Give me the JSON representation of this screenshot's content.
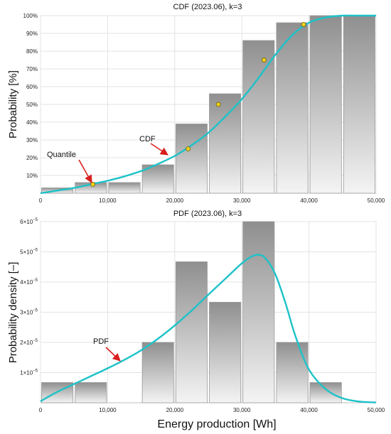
{
  "colors": {
    "bar_dark": "#8f8f8f",
    "bar_light": "#f4f4f4",
    "curve": "#1cc2c8",
    "marker": "#f2d21b",
    "arrow": "#d91e1e"
  },
  "chart_data": [
    {
      "type": "bar",
      "title": "CDF (2023.06), k=3",
      "ylabel": "Probability [%]",
      "xlabel": "",
      "xlim": [
        0,
        50000
      ],
      "ylim": [
        0,
        100
      ],
      "grid": true,
      "x_ticks": [
        "0",
        "10,000",
        "20,000",
        "30,000",
        "40,000",
        "50,000"
      ],
      "y_ticks": [
        "10%",
        "20%",
        "30%",
        "40%",
        "50%",
        "60%",
        "70%",
        "80%",
        "90%",
        "100%"
      ],
      "bars": [
        {
          "x0": 0,
          "x1": 5000,
          "value": 3
        },
        {
          "x0": 5000,
          "x1": 10000,
          "value": 6
        },
        {
          "x0": 10000,
          "x1": 15000,
          "value": 6
        },
        {
          "x0": 15000,
          "x1": 20000,
          "value": 16
        },
        {
          "x0": 20000,
          "x1": 25000,
          "value": 39
        },
        {
          "x0": 25000,
          "x1": 30000,
          "value": 56
        },
        {
          "x0": 30000,
          "x1": 35000,
          "value": 86
        },
        {
          "x0": 35000,
          "x1": 40000,
          "value": 96
        },
        {
          "x0": 40000,
          "x1": 45000,
          "value": 100
        },
        {
          "x0": 45000,
          "x1": 50000,
          "value": 100
        }
      ],
      "curve": {
        "x": [
          0,
          2500,
          5000,
          7500,
          10000,
          12500,
          15000,
          17500,
          20000,
          22500,
          25000,
          27500,
          30000,
          32500,
          35000,
          37500,
          40000,
          42500,
          45000,
          47500,
          50000
        ],
        "y": [
          0,
          1.5,
          3,
          5,
          7,
          9.5,
          12.5,
          16.5,
          21,
          27,
          34,
          43,
          53,
          65,
          78,
          89,
          96,
          99,
          100,
          100,
          100
        ]
      },
      "quantiles": {
        "x": [
          7800,
          22000,
          26500,
          33300,
          39200
        ],
        "y": [
          5,
          25,
          50,
          75,
          95
        ]
      },
      "annotations": [
        "Quantile",
        "CDF"
      ]
    },
    {
      "type": "bar",
      "title": "PDF (2023.06), k=3",
      "ylabel": "Probability density [–]",
      "xlabel": "Energy production [Wh]",
      "xlim": [
        0,
        50000
      ],
      "ylim": [
        0,
        6e-05
      ],
      "grid": true,
      "x_ticks": [
        "0",
        "10,000",
        "20,000",
        "30,000",
        "40,000",
        "50,000"
      ],
      "y_ticks": [
        {
          "base": "1×10",
          "exp": "−5",
          "value": 1e-05
        },
        {
          "base": "2×10",
          "exp": "−5",
          "value": 2e-05
        },
        {
          "base": "3×10",
          "exp": "−5",
          "value": 3e-05
        },
        {
          "base": "4×10",
          "exp": "−5",
          "value": 4e-05
        },
        {
          "base": "5×10",
          "exp": "−5",
          "value": 5e-05
        },
        {
          "base": "6×10",
          "exp": "−5",
          "value": 6e-05
        }
      ],
      "bars": [
        {
          "x0": 0,
          "x1": 5000,
          "value": 6.7e-06
        },
        {
          "x0": 5000,
          "x1": 10000,
          "value": 6.7e-06
        },
        {
          "x0": 15000,
          "x1": 20000,
          "value": 2e-05
        },
        {
          "x0": 20000,
          "x1": 25000,
          "value": 4.67e-05
        },
        {
          "x0": 25000,
          "x1": 30000,
          "value": 3.33e-05
        },
        {
          "x0": 30000,
          "x1": 35000,
          "value": 6e-05
        },
        {
          "x0": 35000,
          "x1": 40000,
          "value": 2e-05
        },
        {
          "x0": 40000,
          "x1": 45000,
          "value": 6.7e-06
        }
      ],
      "curve": {
        "x": [
          0,
          2500,
          5000,
          7500,
          10000,
          12500,
          15000,
          17500,
          20000,
          22500,
          25000,
          27500,
          30000,
          31500,
          32500,
          33500,
          35000,
          36500,
          38000,
          40000,
          42500,
          45000,
          47500,
          50000
        ],
        "y": [
          5e-07,
          3.6e-06,
          6.2e-06,
          8.8e-06,
          1.14e-05,
          1.42e-05,
          1.74e-05,
          2.12e-05,
          2.56e-05,
          3.05e-05,
          3.58e-05,
          4.1e-05,
          4.62e-05,
          4.85e-05,
          4.9e-05,
          4.79e-05,
          4.25e-05,
          3.3e-05,
          2.2e-05,
          1.1e-05,
          4.5e-06,
          1.5e-06,
          4e-07,
          1e-07
        ]
      },
      "annotations": [
        "PDF"
      ]
    }
  ]
}
